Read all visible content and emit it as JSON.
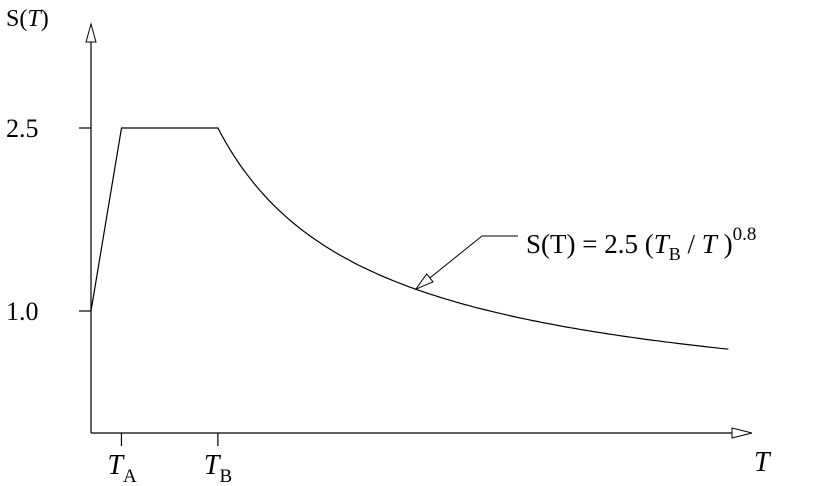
{
  "chart_data": {
    "type": "line",
    "title": "",
    "ylabel": {
      "main": "S(",
      "ital": "T",
      "close": ")"
    },
    "xlabel": "T",
    "y_ticks": [
      {
        "value": 1.0,
        "label": "1.0"
      },
      {
        "value": 2.5,
        "label": "2.5"
      }
    ],
    "x_ticks": [
      {
        "key": "TA",
        "value": 0.3,
        "base": "T",
        "sub": "A"
      },
      {
        "key": "TB",
        "value": 1.25,
        "base": "T",
        "sub": "B"
      }
    ],
    "series": [
      {
        "segments": [
          {
            "kind": "linear",
            "from": {
              "T": 0.0,
              "S": 1.0
            },
            "to": {
              "T": 0.3,
              "S": 2.5
            }
          },
          {
            "kind": "linear",
            "from": {
              "T": 0.3,
              "S": 2.5
            },
            "to": {
              "T": 1.25,
              "S": 2.5
            }
          },
          {
            "kind": "power",
            "T_start": 1.25,
            "T_end": 6.28,
            "coef": 2.5,
            "TB": 1.25,
            "exponent": 0.8
          }
        ]
      }
    ],
    "annotation": {
      "lhs": "S(T) = 2.5 (",
      "tb": "T",
      "tb_sub": "B",
      "div": " / ",
      "t": "T",
      "close": " )",
      "exp": "0.8",
      "points_to_T": 3.2
    },
    "xlim": [
      0,
      6.5
    ],
    "ylim": [
      0,
      3
    ]
  }
}
